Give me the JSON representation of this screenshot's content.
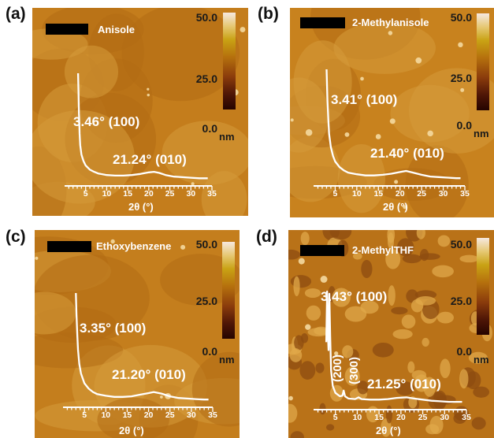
{
  "colorbar": {
    "max_label": "50.0",
    "mid_label": "25.0",
    "min_label": "0.0",
    "unit": "nm",
    "colors": [
      "#f6e8e0",
      "#c9a214",
      "#8b3c0c",
      "#250400"
    ]
  },
  "panels": [
    {
      "letter": "(a)",
      "solvent": "Anisole",
      "image_color": "#c47d1c",
      "chart_data": {
        "type": "line",
        "xlabel": "2θ (°)",
        "xticks": [
          5,
          10,
          15,
          20,
          25,
          30,
          35
        ],
        "xlim": [
          0,
          35
        ],
        "ylim": [
          0,
          100
        ],
        "peaks": [
          {
            "label": "3.46° (100)",
            "two_theta": 3.46
          },
          {
            "label": "21.24° (010)",
            "two_theta": 21.24
          }
        ],
        "series": [
          {
            "x": [
              3.2,
              3.3,
              3.4,
              3.46,
              3.55,
              3.7,
              4.0,
              4.5,
              5.0,
              6.0,
              7.0,
              8.0,
              10.0,
              12.0,
              14.0,
              16.0,
              18.0,
              20.0,
              21.24,
              22.5,
              24.0,
              26.0,
              28.0,
              30.0,
              32.0,
              34.0
            ],
            "y": [
              100,
              84,
              62,
              58,
              44,
              33,
              24,
              18,
              14,
              10,
              8,
              6.5,
              5,
              4.5,
              4.5,
              5,
              6,
              7.5,
              8,
              7,
              5,
              3.5,
              3,
              2.5,
              2,
              2
            ]
          }
        ]
      }
    },
    {
      "letter": "(b)",
      "solvent": "2-Methylanisole",
      "image_color": "#c8821e",
      "chart_data": {
        "type": "line",
        "xlabel": "2θ (°)",
        "xticks": [
          5,
          10,
          15,
          20,
          25,
          30,
          35
        ],
        "xlim": [
          0,
          35
        ],
        "ylim": [
          0,
          100
        ],
        "peaks": [
          {
            "label": "3.41° (100)",
            "two_theta": 3.41
          },
          {
            "label": "21.40° (010)",
            "two_theta": 21.4
          }
        ],
        "series": [
          {
            "x": [
              3.0,
              3.2,
              3.41,
              3.6,
              4.0,
              4.5,
              5.0,
              6.0,
              7.0,
              8.0,
              10.0,
              12.0,
              14.0,
              16.0,
              18.0,
              20.0,
              21.4,
              23.0,
              25.0,
              27.0,
              29.0,
              31.0,
              33.0,
              34.0
            ],
            "y": [
              100,
              72,
              55,
              42,
              30,
              22,
              17,
              12,
              9,
              7,
              5.5,
              4.5,
              4.5,
              5,
              6,
              7.5,
              8.5,
              7,
              5,
              3.5,
              3,
              2.5,
              2,
              2
            ]
          }
        ]
      }
    },
    {
      "letter": "(c)",
      "solvent": "Ethoxybenzene",
      "image_color": "#c47e1d",
      "chart_data": {
        "type": "line",
        "xlabel": "2θ (°)",
        "xticks": [
          5,
          10,
          15,
          20,
          25,
          30,
          35
        ],
        "xlim": [
          0,
          35
        ],
        "ylim": [
          0,
          100
        ],
        "peaks": [
          {
            "label": "3.35° (100)",
            "two_theta": 3.35
          },
          {
            "label": "21.20° (010)",
            "two_theta": 21.2
          }
        ],
        "series": [
          {
            "x": [
              3.0,
              3.15,
              3.35,
              3.5,
              3.8,
              4.2,
              5.0,
              6.0,
              7.0,
              8.0,
              10.0,
              12.0,
              14.0,
              16.0,
              18.0,
              20.0,
              21.2,
              23.0,
              25.0,
              27.0,
              29.0,
              31.0,
              33.0,
              34.0
            ],
            "y": [
              100,
              80,
              60,
              48,
              35,
              26,
              17,
              12,
              9,
              7,
              5.5,
              4.5,
              4.5,
              5,
              6.5,
              8,
              9,
              7.5,
              5,
              3.5,
              3,
              2.5,
              2,
              2
            ]
          }
        ]
      }
    },
    {
      "letter": "(d)",
      "solvent": "2-MethylTHF",
      "image_color": "#b97218",
      "chart_data": {
        "type": "line",
        "xlabel": "2θ (°)",
        "xticks": [
          5,
          10,
          15,
          20,
          25,
          30,
          35
        ],
        "xlim": [
          0,
          35
        ],
        "ylim": [
          0,
          100
        ],
        "peaks": [
          {
            "label": "3.43° (100)",
            "two_theta": 3.43
          },
          {
            "label": "(200)",
            "two_theta": 6.9
          },
          {
            "label": "(300)",
            "two_theta": 10.3
          },
          {
            "label": "21.25° (010)",
            "two_theta": 21.25
          }
        ],
        "series": [
          {
            "x": [
              2.9,
              3.1,
              3.25,
              3.43,
              3.6,
              3.8,
              4.0,
              4.4,
              5.0,
              6.0,
              6.6,
              6.9,
              7.2,
              8.0,
              9.5,
              10.3,
              11.0,
              13.0,
              15.0,
              17.0,
              19.0,
              21.25,
              23.0,
              25.0,
              27.0,
              29.0,
              31.0,
              33.0,
              34.0
            ],
            "y": [
              55,
              100,
              65,
              48,
              98,
              60,
              30,
              16,
              10,
              7,
              7.5,
              12,
              7,
              5,
              4.5,
              6,
              4.5,
              4,
              4,
              4.5,
              5.5,
              6,
              5,
              4,
              3,
              2.5,
              2,
              2,
              2
            ]
          }
        ]
      }
    }
  ]
}
